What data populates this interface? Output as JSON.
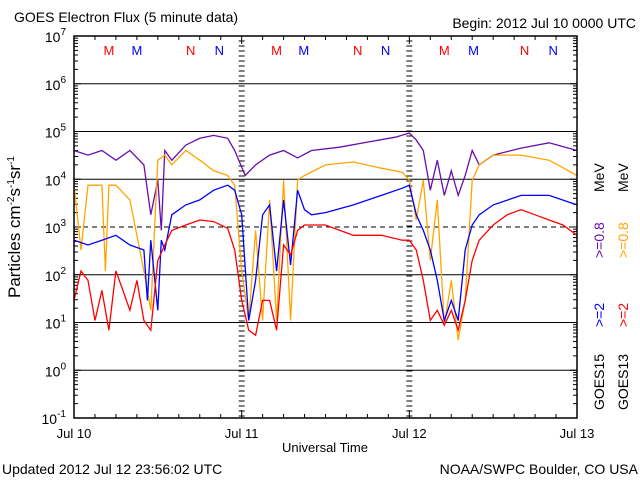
{
  "chart_data": {
    "type": "line",
    "title": "GOES Electron Flux (5 minute data)",
    "begin": "Begin: 2012 Jul 10 0000 UTC",
    "xlabel": "Universal Time",
    "ylabel": {
      "base": "Particles cm",
      "e1": "-2",
      "s": "s",
      "e2": "-1",
      "sr": "sr",
      "e3": "-1"
    },
    "x_unit": "hours since 2012 Jul 10 0000 UTC",
    "xlim": [
      0,
      72
    ],
    "ylim": [
      0.1,
      10000000
    ],
    "yscale": "log",
    "x_ticks": [
      {
        "hour": 0,
        "label": "Jul 10"
      },
      {
        "hour": 24,
        "label": "Jul 11"
      },
      {
        "hour": 48,
        "label": "Jul 12"
      },
      {
        "hour": 72,
        "label": "Jul 13"
      }
    ],
    "y_ticks": [
      {
        "base": "10",
        "exp": "7"
      },
      {
        "base": "10",
        "exp": "6"
      },
      {
        "base": "10",
        "exp": "5"
      },
      {
        "base": "10",
        "exp": "4"
      },
      {
        "base": "10",
        "exp": "3"
      },
      {
        "base": "10",
        "exp": "2"
      },
      {
        "base": "10",
        "exp": "1"
      },
      {
        "base": "10",
        "exp": "0"
      },
      {
        "base": "10",
        "exp": "-1"
      }
    ],
    "threshold": 1000,
    "markers": [
      {
        "hour": 5,
        "label": "M",
        "color": "#ff0000"
      },
      {
        "hour": 9,
        "label": "M",
        "color": "#0000ff"
      },
      {
        "hour": 16.7,
        "label": "N",
        "color": "#ff0000"
      },
      {
        "hour": 20.8,
        "label": "N",
        "color": "#0000ff"
      },
      {
        "hour": 29,
        "label": "M",
        "color": "#ff0000"
      },
      {
        "hour": 32.9,
        "label": "M",
        "color": "#0000ff"
      },
      {
        "hour": 40.6,
        "label": "N",
        "color": "#ff0000"
      },
      {
        "hour": 44.6,
        "label": "N",
        "color": "#0000ff"
      },
      {
        "hour": 53,
        "label": "M",
        "color": "#ff0000"
      },
      {
        "hour": 57.2,
        "label": "M",
        "color": "#0000ff"
      },
      {
        "hour": 64.5,
        "label": "N",
        "color": "#ff0000"
      },
      {
        "hour": 68.6,
        "label": "N",
        "color": "#0000ff"
      }
    ],
    "legend": {
      "goes15": {
        "name": "GOES15",
        "high": ">=2",
        "low": ">=0.8",
        "unit": "MeV"
      },
      "goes13": {
        "name": "GOES13",
        "high": ">=2",
        "low": ">=0.8",
        "unit": "MeV"
      }
    },
    "series": [
      {
        "name": "GOES15 >=0.8 MeV",
        "color": "#6a0dad",
        "points": [
          [
            0,
            40000
          ],
          [
            2,
            32000
          ],
          [
            4,
            40000
          ],
          [
            6,
            25000
          ],
          [
            8,
            40000
          ],
          [
            10,
            20000
          ],
          [
            11,
            1800
          ],
          [
            12,
            9600
          ],
          [
            12.5,
            850
          ],
          [
            13,
            40000
          ],
          [
            14,
            25000
          ],
          [
            16,
            52000
          ],
          [
            18,
            72000
          ],
          [
            20,
            83000
          ],
          [
            22,
            72000
          ],
          [
            23,
            40000
          ],
          [
            24.5,
            12000
          ],
          [
            26,
            20000
          ],
          [
            28,
            32000
          ],
          [
            30,
            40000
          ],
          [
            32,
            28000
          ],
          [
            34,
            40000
          ],
          [
            38,
            47000
          ],
          [
            42,
            60000
          ],
          [
            46,
            76000
          ],
          [
            48,
            93000
          ],
          [
            49,
            66000
          ],
          [
            50,
            40000
          ],
          [
            51,
            5900
          ],
          [
            52,
            25000
          ],
          [
            53,
            4600
          ],
          [
            54,
            15000
          ],
          [
            55,
            4600
          ],
          [
            56,
            12000
          ],
          [
            57,
            40000
          ],
          [
            58,
            20000
          ],
          [
            60,
            32000
          ],
          [
            64,
            45000
          ],
          [
            68,
            58000
          ],
          [
            72,
            40000
          ]
        ]
      },
      {
        "name": "GOES13 >=0.8 MeV",
        "color": "#ffa500",
        "points": [
          [
            0,
            7500
          ],
          [
            1,
            330
          ],
          [
            2,
            7500
          ],
          [
            4,
            7500
          ],
          [
            4.5,
            120
          ],
          [
            5,
            7500
          ],
          [
            6,
            7500
          ],
          [
            8,
            3700
          ],
          [
            10,
            120
          ],
          [
            11,
            18
          ],
          [
            12,
            25000
          ],
          [
            13,
            32000
          ],
          [
            14,
            20000
          ],
          [
            16,
            40000
          ],
          [
            18,
            25000
          ],
          [
            20,
            15000
          ],
          [
            22,
            12000
          ],
          [
            23,
            7500
          ],
          [
            24,
            120
          ],
          [
            25,
            11
          ],
          [
            26,
            850
          ],
          [
            27,
            11
          ],
          [
            28,
            3700
          ],
          [
            29,
            11
          ],
          [
            30,
            9600
          ],
          [
            31,
            11
          ],
          [
            32,
            9600
          ],
          [
            33,
            12000
          ],
          [
            36,
            20000
          ],
          [
            40,
            23000
          ],
          [
            44,
            17000
          ],
          [
            47,
            14000
          ],
          [
            48,
            9600
          ],
          [
            49,
            1400
          ],
          [
            50,
            9600
          ],
          [
            51,
            200
          ],
          [
            52,
            3700
          ],
          [
            53,
            8.8
          ],
          [
            54,
            76
          ],
          [
            55,
            4.3
          ],
          [
            56,
            29
          ],
          [
            57,
            9600
          ],
          [
            58,
            20000
          ],
          [
            60,
            32000
          ],
          [
            64,
            32000
          ],
          [
            68,
            25000
          ],
          [
            72,
            12000
          ]
        ]
      },
      {
        "name": "GOES15 >=2 MeV",
        "color": "#0000ff",
        "points": [
          [
            0,
            530
          ],
          [
            2,
            420
          ],
          [
            4,
            530
          ],
          [
            6,
            670
          ],
          [
            8,
            420
          ],
          [
            10,
            330
          ],
          [
            10.5,
            29
          ],
          [
            11,
            530
          ],
          [
            12,
            18
          ],
          [
            12.5,
            530
          ],
          [
            13,
            330
          ],
          [
            14,
            1800
          ],
          [
            16,
            2900
          ],
          [
            18,
            3700
          ],
          [
            20,
            5900
          ],
          [
            22,
            7500
          ],
          [
            23,
            5900
          ],
          [
            24,
            1800
          ],
          [
            25,
            11
          ],
          [
            26,
            76
          ],
          [
            27,
            1800
          ],
          [
            28,
            2900
          ],
          [
            29,
            120
          ],
          [
            30,
            3700
          ],
          [
            31,
            160
          ],
          [
            32,
            5900
          ],
          [
            33,
            2300
          ],
          [
            34,
            1800
          ],
          [
            36,
            2000
          ],
          [
            40,
            2900
          ],
          [
            44,
            4600
          ],
          [
            47,
            6500
          ],
          [
            48,
            7500
          ],
          [
            49,
            1800
          ],
          [
            50,
            850
          ],
          [
            51,
            330
          ],
          [
            52,
            76
          ],
          [
            53,
            11
          ],
          [
            54,
            29
          ],
          [
            55,
            11
          ],
          [
            56,
            330
          ],
          [
            57,
            1100
          ],
          [
            58,
            1800
          ],
          [
            60,
            2900
          ],
          [
            64,
            4600
          ],
          [
            68,
            4600
          ],
          [
            72,
            2900
          ]
        ]
      },
      {
        "name": "GOES13 >=2 MeV",
        "color": "#ff0000",
        "points": [
          [
            0,
            29
          ],
          [
            1,
            120
          ],
          [
            2,
            76
          ],
          [
            3,
            11
          ],
          [
            4,
            47
          ],
          [
            5,
            6.9
          ],
          [
            6,
            120
          ],
          [
            7,
            47
          ],
          [
            8,
            18
          ],
          [
            9,
            76
          ],
          [
            10,
            11
          ],
          [
            11,
            6.9
          ],
          [
            12,
            200
          ],
          [
            13,
            420
          ],
          [
            14,
            850
          ],
          [
            16,
            1100
          ],
          [
            18,
            1400
          ],
          [
            20,
            1300
          ],
          [
            22,
            940
          ],
          [
            23,
            330
          ],
          [
            24,
            29
          ],
          [
            25,
            6.9
          ],
          [
            26,
            5.4
          ],
          [
            27,
            29
          ],
          [
            28,
            29
          ],
          [
            29,
            6.9
          ],
          [
            30,
            420
          ],
          [
            31,
            260
          ],
          [
            32,
            850
          ],
          [
            33,
            1100
          ],
          [
            36,
            1100
          ],
          [
            40,
            670
          ],
          [
            44,
            670
          ],
          [
            47,
            530
          ],
          [
            48,
            530
          ],
          [
            49,
            330
          ],
          [
            50,
            76
          ],
          [
            51,
            11
          ],
          [
            52,
            18
          ],
          [
            53,
            8.8
          ],
          [
            54,
            18
          ],
          [
            55,
            6.9
          ],
          [
            56,
            29
          ],
          [
            57,
            200
          ],
          [
            58,
            530
          ],
          [
            60,
            1100
          ],
          [
            62,
            1800
          ],
          [
            64,
            2300
          ],
          [
            66,
            1800
          ],
          [
            68,
            1400
          ],
          [
            70,
            1100
          ],
          [
            72,
            670
          ]
        ]
      }
    ]
  },
  "footer": {
    "updated": "Updated 2012 Jul 12 23:56:02 UTC",
    "source": "NOAA/SWPC Boulder, CO USA"
  }
}
